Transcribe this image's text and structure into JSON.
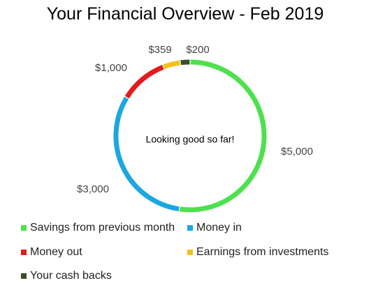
{
  "chart_data": {
    "type": "pie",
    "variant": "donut",
    "title": "Your Financial Overview - Feb 2019",
    "center_text": "Looking good so far!",
    "legend_position": "bottom",
    "slices": [
      {
        "name": "Savings from previous month",
        "value": 5000,
        "label": "$5,000",
        "color": "#4de14d"
      },
      {
        "name": "Money in",
        "value": 3000,
        "label": "$3,000",
        "color": "#1ba7e0"
      },
      {
        "name": "Money out",
        "value": 1000,
        "label": "$1,000",
        "color": "#e31b1b"
      },
      {
        "name": "Earnings from investments",
        "value": 359,
        "label": "$359",
        "color": "#f5c118"
      },
      {
        "name": "Your cash backs",
        "value": 200,
        "label": "$200",
        "color": "#3b4d2a"
      }
    ]
  }
}
